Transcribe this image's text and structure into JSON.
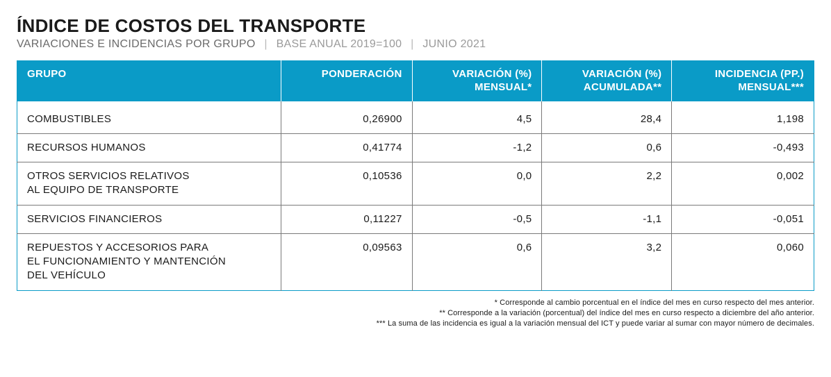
{
  "header": {
    "title": "ÍNDICE DE COSTOS DEL TRANSPORTE",
    "subtitle_main": "VARIACIONES E INCIDENCIAS POR GRUPO",
    "subtitle_base": "BASE ANUAL 2019=100",
    "subtitle_period": "JUNIO 2021"
  },
  "table": {
    "columns": [
      "GRUPO",
      "PONDERACIÓN",
      "VARIACIÓN (%) MENSUAL*",
      "VARIACIÓN (%) ACUMULADA**",
      "INCIDENCIA (PP.) MENSUAL***"
    ],
    "col_line2": {
      "c2": "MENSUAL*",
      "c3": "ACUMULADA**",
      "c4": "MENSUAL***"
    },
    "col_line1": {
      "c0": "GRUPO",
      "c1": "PONDERACIÓN",
      "c2": "VARIACIÓN (%)",
      "c3": "VARIACIÓN (%)",
      "c4": "INCIDENCIA (PP.)"
    },
    "rows": [
      {
        "grupo": "COMBUSTIBLES",
        "ponderacion": "0,26900",
        "var_mensual": "4,5",
        "var_acum": "28,4",
        "incidencia": "1,198"
      },
      {
        "grupo": "RECURSOS HUMANOS",
        "ponderacion": "0,41774",
        "var_mensual": "-1,2",
        "var_acum": "0,6",
        "incidencia": "-0,493"
      },
      {
        "grupo": "OTROS SERVICIOS RELATIVOS AL EQUIPO DE TRANSPORTE",
        "ponderacion": "0,10536",
        "var_mensual": "0,0",
        "var_acum": "2,2",
        "incidencia": "0,002"
      },
      {
        "grupo": "SERVICIOS FINANCIEROS",
        "ponderacion": "0,11227",
        "var_mensual": "-0,5",
        "var_acum": "-1,1",
        "incidencia": "-0,051"
      },
      {
        "grupo": "REPUESTOS Y ACCESORIOS PARA EL FUNCIONAMIENTO Y MANTENCIÓN DEL VEHÍCULO",
        "ponderacion": "0,09563",
        "var_mensual": "0,6",
        "var_acum": "3,2",
        "incidencia": "0,060"
      }
    ],
    "header_bg": "#0a9bc7",
    "header_fg": "#ffffff",
    "border_color": "#7a7a7a"
  },
  "footnotes": {
    "n1": "* Corresponde al cambio porcentual en el índice del mes en curso respecto del mes anterior.",
    "n2": "** Corresponde a la variación (porcentual) del índice del mes en curso respecto a diciembre del año anterior.",
    "n3": "*** La suma de las incidencia es igual a la variación mensual del ICT y puede variar al sumar con mayor número de decimales."
  }
}
